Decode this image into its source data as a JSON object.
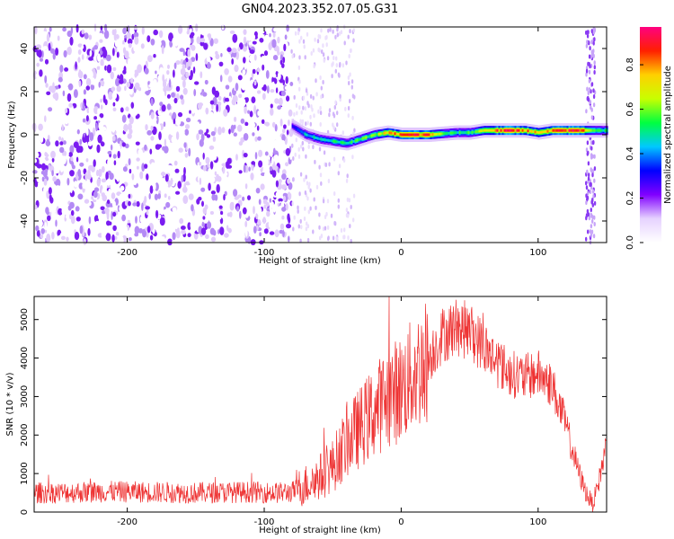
{
  "title": "GN04.2023.352.07.05.G31",
  "chart_data": [
    {
      "type": "heatmap",
      "xlabel": "Height of straight line (km)",
      "ylabel": "Frequency (Hz)",
      "xlim": [
        -268,
        150
      ],
      "ylim": [
        -50,
        50
      ],
      "x_ticks": [
        -200,
        -100,
        0,
        100
      ],
      "x_tick_labels": [
        "-200",
        "-100",
        "0",
        "100"
      ],
      "y_ticks": [
        -40,
        -20,
        0,
        20,
        40
      ],
      "y_tick_labels": [
        "-40",
        "-20",
        "0",
        "20",
        "40"
      ],
      "colorbar": {
        "label": "Normalized spectral amplitude",
        "range": [
          0,
          0.97
        ],
        "ticks": [
          0.0,
          0.2,
          0.4,
          0.6,
          0.8
        ],
        "tick_labels": [
          "0.0",
          "0.2",
          "0.4",
          "0.6",
          "0.8"
        ],
        "colors": [
          "#ffffff",
          "#e6d2ff",
          "#8000ff",
          "#0000ff",
          "#00c8ff",
          "#00ff40",
          "#c8ff00",
          "#ffd000",
          "#ff2000",
          "#ff0080"
        ]
      },
      "noise_region": {
        "x_range": [
          -268,
          -80
        ],
        "note_level": 0.3
      },
      "ridge": {
        "x": [
          -80,
          -70,
          -60,
          -50,
          -40,
          -30,
          -20,
          -10,
          0,
          10,
          20,
          30,
          40,
          50,
          60,
          70,
          80,
          90,
          100,
          110,
          120,
          130,
          140,
          150
        ],
        "frequency": [
          4,
          0,
          -2,
          -3,
          -4,
          -2,
          0,
          1,
          0,
          0,
          0,
          0.5,
          1,
          1,
          2,
          2,
          2,
          2,
          1,
          2,
          2,
          2,
          2,
          2
        ],
        "amplitude": [
          0.3,
          0.45,
          0.5,
          0.5,
          0.5,
          0.55,
          0.6,
          0.75,
          0.85,
          0.9,
          0.85,
          0.55,
          0.5,
          0.55,
          0.7,
          0.85,
          0.9,
          0.85,
          0.7,
          0.8,
          0.9,
          0.9,
          0.6,
          0.5
        ]
      }
    },
    {
      "type": "line",
      "xlabel": "Height of straight line (km)",
      "ylabel": "SNR (10 * v/v)",
      "xlim": [
        -268,
        150
      ],
      "ylim": [
        0,
        5600
      ],
      "x_ticks": [
        -200,
        -100,
        0,
        100
      ],
      "x_tick_labels": [
        "-200",
        "-100",
        "0",
        "100"
      ],
      "y_ticks": [
        0,
        1000,
        2000,
        3000,
        4000,
        5000
      ],
      "y_tick_labels": [
        "0",
        "1000",
        "2000",
        "3000",
        "4000",
        "5000"
      ],
      "color": "#ee3333",
      "series": [
        {
          "x": [
            -268,
            -250,
            -230,
            -210,
            -190,
            -170,
            -150,
            -130,
            -110,
            -90,
            -80,
            -70,
            -60,
            -50,
            -40,
            -30,
            -20,
            -10,
            0,
            10,
            20,
            30,
            40,
            50,
            60,
            70,
            80,
            90,
            100,
            110,
            120,
            125,
            130,
            135,
            140,
            145,
            150
          ],
          "values": [
            500,
            500,
            520,
            530,
            520,
            510,
            500,
            510,
            520,
            500,
            520,
            700,
            900,
            1200,
            1800,
            2200,
            2600,
            3000,
            3200,
            3600,
            4000,
            4600,
            4800,
            4700,
            4300,
            3900,
            3600,
            3500,
            3600,
            3300,
            2300,
            1600,
            1000,
            500,
            200,
            900,
            1800
          ]
        }
      ]
    }
  ]
}
